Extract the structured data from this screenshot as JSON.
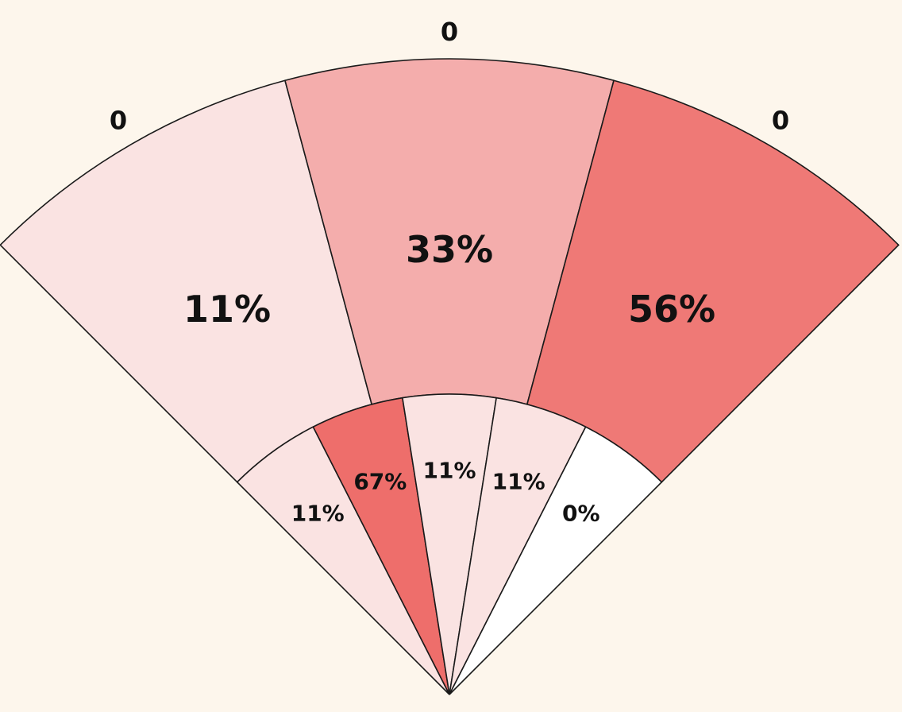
{
  "chart_data": {
    "type": "sunburst",
    "outer_ring": [
      {
        "label": "11%",
        "value": 11,
        "color": "#fae3e2",
        "category_label": "0"
      },
      {
        "label": "33%",
        "value": 33,
        "color": "#f4adac",
        "category_label": "0"
      },
      {
        "label": "56%",
        "value": 56,
        "color": "#ef7976",
        "category_label": "0"
      }
    ],
    "inner_ring": [
      {
        "label": "11%",
        "value": 11,
        "color": "#fae3e2"
      },
      {
        "label": "67%",
        "value": 67,
        "color": "#ee6e6b"
      },
      {
        "label": "11%",
        "value": 11,
        "color": "#fae3e2"
      },
      {
        "label": "11%",
        "value": 11,
        "color": "#fae3e2"
      },
      {
        "label": "0%",
        "value": 0,
        "color": "#ffffff"
      }
    ],
    "start_angle_deg": -45,
    "end_angle_deg": 45
  }
}
